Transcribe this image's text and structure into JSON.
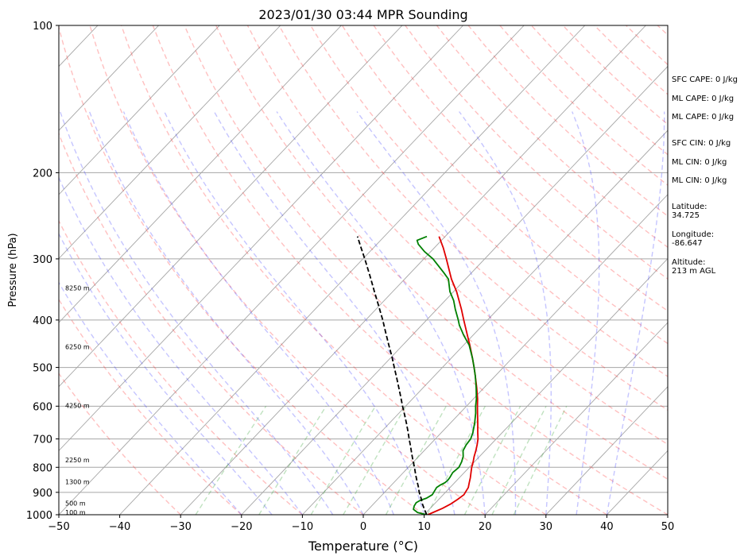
{
  "chart_data": {
    "type": "line",
    "subtype": "skew-T log-P sounding",
    "title": "2023/01/30 03:44 MPR Sounding",
    "xlabel": "Temperature (°C)",
    "ylabel": "Pressure (hPa)",
    "x_scale": "linear",
    "y_scale": "log (inverted)",
    "xlim": [
      -50,
      50
    ],
    "ylim": [
      1000,
      100
    ],
    "x_ticks": [
      "−50",
      "−40",
      "−30",
      "−20",
      "−10",
      "0",
      "10",
      "20",
      "30",
      "40",
      "50"
    ],
    "y_ticks": [
      "100",
      "200",
      "300",
      "400",
      "500",
      "600",
      "700",
      "800",
      "900",
      "1000"
    ],
    "height_labels": [
      {
        "p": 993,
        "label": "100 m"
      },
      {
        "p": 950,
        "label": "500 m"
      },
      {
        "p": 860,
        "label": "1300 m"
      },
      {
        "p": 775,
        "label": "2250 m"
      },
      {
        "p": 600,
        "label": "4250 m"
      },
      {
        "p": 455,
        "label": "6250 m"
      },
      {
        "p": 345,
        "label": "8250 m"
      }
    ],
    "series": [
      {
        "color": "#e00000",
        "style": "solid",
        "points": [
          [
            1000,
            10.6
          ],
          [
            985,
            11.3
          ],
          [
            970,
            12.0
          ],
          [
            950,
            12.7
          ],
          [
            930,
            13.1
          ],
          [
            910,
            13.4
          ],
          [
            895,
            13.2
          ],
          [
            880,
            13.0
          ],
          [
            860,
            12.4
          ],
          [
            840,
            11.8
          ],
          [
            820,
            11.1
          ],
          [
            800,
            10.4
          ],
          [
            780,
            9.8
          ],
          [
            760,
            9.1
          ],
          [
            740,
            8.5
          ],
          [
            720,
            7.8
          ],
          [
            700,
            7.0
          ],
          [
            680,
            6.0
          ],
          [
            650,
            4.5
          ],
          [
            620,
            2.9
          ],
          [
            600,
            1.8
          ],
          [
            580,
            0.7
          ],
          [
            550,
            -1.2
          ],
          [
            520,
            -3.3
          ],
          [
            500,
            -4.8
          ],
          [
            480,
            -6.4
          ],
          [
            450,
            -9.0
          ],
          [
            430,
            -10.9
          ],
          [
            400,
            -13.9
          ],
          [
            380,
            -16.0
          ],
          [
            350,
            -19.5
          ],
          [
            330,
            -22.3
          ],
          [
            300,
            -26.3
          ],
          [
            285,
            -28.5
          ],
          [
            270,
            -31.0
          ]
        ]
      },
      {
        "color": "#008000",
        "style": "solid",
        "points": [
          [
            1000,
            10.4
          ],
          [
            990,
            8.6
          ],
          [
            975,
            7.4
          ],
          [
            960,
            7.0
          ],
          [
            945,
            6.8
          ],
          [
            935,
            7.1
          ],
          [
            925,
            7.8
          ],
          [
            910,
            8.2
          ],
          [
            895,
            8.0
          ],
          [
            880,
            7.8
          ],
          [
            870,
            8.0
          ],
          [
            860,
            8.4
          ],
          [
            850,
            8.5
          ],
          [
            840,
            8.4
          ],
          [
            820,
            8.1
          ],
          [
            800,
            8.3
          ],
          [
            780,
            7.9
          ],
          [
            760,
            7.3
          ],
          [
            740,
            6.4
          ],
          [
            720,
            6.0
          ],
          [
            700,
            5.8
          ],
          [
            680,
            5.2
          ],
          [
            650,
            4.0
          ],
          [
            620,
            2.6
          ],
          [
            600,
            1.5
          ],
          [
            580,
            0.5
          ],
          [
            550,
            -1.3
          ],
          [
            520,
            -3.3
          ],
          [
            500,
            -4.8
          ],
          [
            480,
            -6.4
          ],
          [
            450,
            -9.1
          ],
          [
            430,
            -11.5
          ],
          [
            410,
            -13.8
          ],
          [
            400,
            -14.8
          ],
          [
            380,
            -17.0
          ],
          [
            365,
            -18.6
          ],
          [
            350,
            -20.6
          ],
          [
            330,
            -22.8
          ],
          [
            320,
            -24.6
          ],
          [
            300,
            -28.5
          ],
          [
            290,
            -31.0
          ],
          [
            280,
            -33.2
          ],
          [
            275,
            -34.0
          ],
          [
            270,
            -33.0
          ]
        ]
      },
      {
        "color": "#000000",
        "style": "dashed",
        "points": [
          [
            1000,
            10.4
          ],
          [
            975,
            9.2
          ],
          [
            950,
            8.0
          ],
          [
            925,
            6.9
          ],
          [
            900,
            5.7
          ],
          [
            875,
            4.6
          ],
          [
            850,
            3.4
          ],
          [
            825,
            2.2
          ],
          [
            800,
            1.0
          ],
          [
            775,
            -0.3
          ],
          [
            750,
            -1.6
          ],
          [
            725,
            -2.9
          ],
          [
            700,
            -4.3
          ],
          [
            675,
            -5.7
          ],
          [
            650,
            -7.2
          ],
          [
            625,
            -8.8
          ],
          [
            600,
            -10.5
          ],
          [
            575,
            -12.2
          ],
          [
            550,
            -14.0
          ],
          [
            525,
            -15.9
          ],
          [
            500,
            -17.9
          ],
          [
            475,
            -20.0
          ],
          [
            450,
            -22.3
          ],
          [
            425,
            -24.7
          ],
          [
            400,
            -27.2
          ],
          [
            375,
            -30.0
          ],
          [
            350,
            -33.0
          ],
          [
            325,
            -36.2
          ],
          [
            300,
            -39.7
          ],
          [
            285,
            -42.0
          ],
          [
            270,
            -44.4
          ]
        ]
      }
    ],
    "side_labels": [
      "SFC CAPE: 0 J/kg",
      "ML CAPE: 0 J/kg",
      "ML CAPE: 0 J/kg",
      "SFC CIN: 0 J/kg",
      "ML CIN: 0 J/kg",
      "ML CIN: 0 J/kg",
      "Latitude:\n34.725",
      "Longitude:\n-86.647",
      "Altitude:\n213 m AGL"
    ]
  }
}
